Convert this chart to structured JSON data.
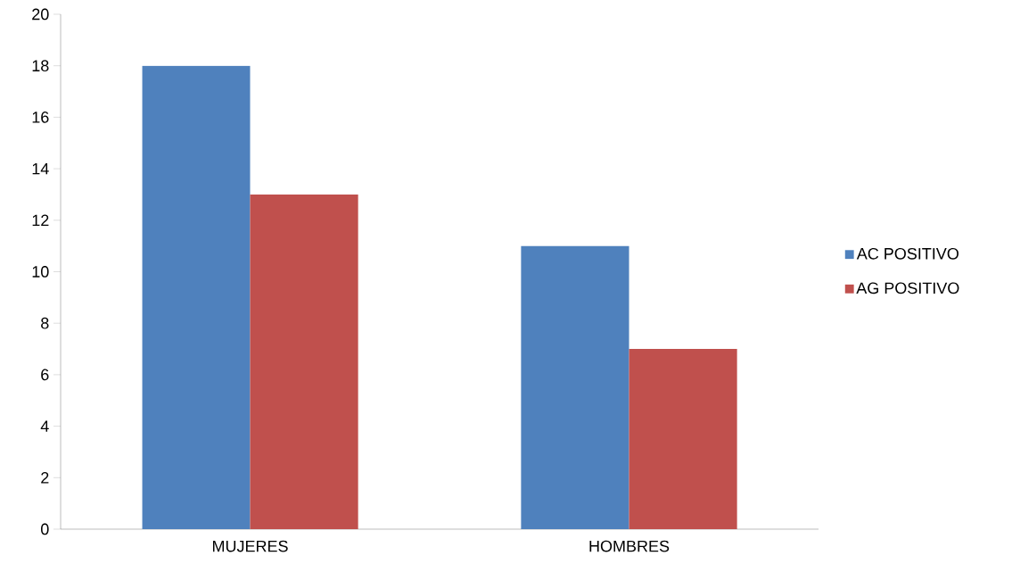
{
  "chart_data": {
    "type": "bar",
    "categories": [
      "MUJERES",
      "HOMBRES"
    ],
    "series": [
      {
        "name": "AC POSITIVO",
        "color": "#4f81bd",
        "values": [
          18,
          11
        ]
      },
      {
        "name": "AG POSITIVO",
        "color": "#c0504d",
        "values": [
          13,
          7
        ]
      }
    ],
    "ylim": [
      0,
      20
    ],
    "yticks": [
      0,
      2,
      4,
      6,
      8,
      10,
      12,
      14,
      16,
      18,
      20
    ],
    "grid": false,
    "legend": "right"
  }
}
